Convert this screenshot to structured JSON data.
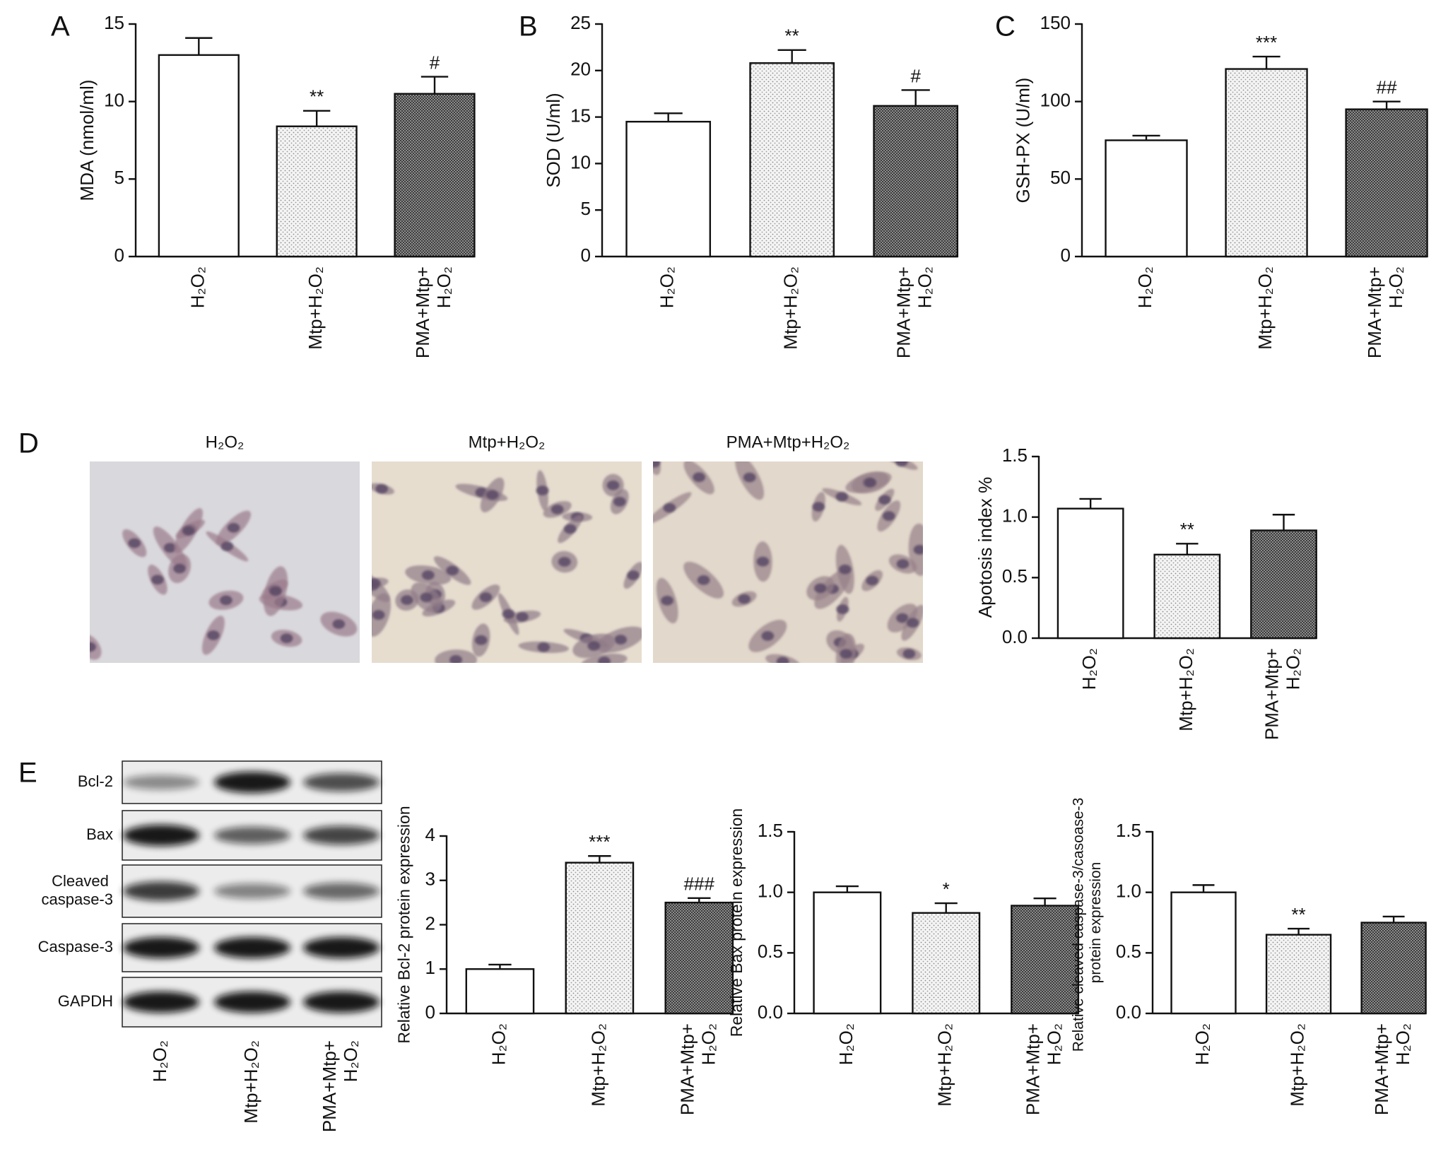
{
  "chart_data": [
    {
      "type": "bar",
      "panel": "A",
      "ylabel": "MDA (nmol/ml)",
      "categories": [
        "H₂O₂",
        "Mtp+H₂O₂",
        "PMA+Mtp+H₂O₂"
      ],
      "values": [
        13.0,
        8.4,
        10.5
      ],
      "errors": [
        1.1,
        1.0,
        1.1
      ],
      "annotations": [
        null,
        "**",
        "#"
      ],
      "ylim": [
        0,
        15
      ],
      "yticks": [
        0,
        5,
        10,
        15
      ],
      "patterns": [
        "none",
        "dots",
        "crosshatch"
      ]
    },
    {
      "type": "bar",
      "panel": "B",
      "ylabel": "SOD (U/ml)",
      "categories": [
        "H₂O₂",
        "Mtp+H₂O₂",
        "PMA+Mtp+H₂O₂"
      ],
      "values": [
        14.5,
        20.8,
        16.2
      ],
      "errors": [
        0.9,
        1.4,
        1.7
      ],
      "annotations": [
        null,
        "**",
        "#"
      ],
      "ylim": [
        0,
        25
      ],
      "yticks": [
        0,
        5,
        10,
        15,
        20,
        25
      ],
      "patterns": [
        "none",
        "dots",
        "crosshatch"
      ]
    },
    {
      "type": "bar",
      "panel": "C",
      "ylabel": "GSH-PX (U/ml)",
      "categories": [
        "H₂O₂",
        "Mtp+H₂O₂",
        "PMA+Mtp+H₂O₂"
      ],
      "values": [
        75,
        121,
        95
      ],
      "errors": [
        3,
        8,
        5
      ],
      "annotations": [
        null,
        "***",
        "##"
      ],
      "ylim": [
        0,
        150
      ],
      "yticks": [
        0,
        50,
        100,
        150
      ],
      "patterns": [
        "none",
        "dots",
        "crosshatch"
      ]
    },
    {
      "type": "bar",
      "panel": "D",
      "ylabel": "Apotosis index %",
      "categories": [
        "H₂O₂",
        "Mtp+H₂O₂",
        "PMA+Mtp+H₂O₂"
      ],
      "values": [
        1.07,
        0.69,
        0.89
      ],
      "errors": [
        0.08,
        0.09,
        0.13
      ],
      "annotations": [
        null,
        "**",
        null
      ],
      "ylim": [
        0,
        1.5
      ],
      "yticks": [
        {
          "value": 0,
          "label": "0.0"
        },
        0.5,
        {
          "value": 1,
          "label": "1.0"
        },
        1.5
      ],
      "patterns": [
        "none",
        "dots",
        "crosshatch"
      ]
    },
    {
      "type": "bar",
      "ylabel": "Relative Bcl-2 protein expression",
      "categories": [
        "H₂O₂",
        "Mtp+H₂O₂",
        "PMA+Mtp+H₂O₂"
      ],
      "values": [
        1.0,
        3.4,
        2.5
      ],
      "errors": [
        0.1,
        0.15,
        0.1
      ],
      "annotations": [
        null,
        "***",
        "###"
      ],
      "ylim": [
        0,
        4
      ],
      "yticks": [
        0,
        1,
        2,
        3,
        4
      ],
      "patterns": [
        "none",
        "dots",
        "crosshatch"
      ]
    },
    {
      "type": "bar",
      "ylabel": "Relative Bax protein expression",
      "categories": [
        "H₂O₂",
        "Mtp+H₂O₂",
        "PMA+Mtp+H₂O₂"
      ],
      "values": [
        1.0,
        0.83,
        0.89
      ],
      "errors": [
        0.05,
        0.08,
        0.06
      ],
      "annotations": [
        null,
        "*",
        null
      ],
      "ylim": [
        0,
        1.5
      ],
      "yticks": [
        {
          "value": 0,
          "label": "0.0"
        },
        0.5,
        {
          "value": 1,
          "label": "1.0"
        },
        1.5
      ],
      "patterns": [
        "none",
        "dots",
        "crosshatch"
      ]
    },
    {
      "type": "bar",
      "ylabel": "Relative cleaved caspase-3/casoase-3 protein expression",
      "categories": [
        "H₂O₂",
        "Mtp+H₂O₂",
        "PMA+Mtp+H₂O₂"
      ],
      "values": [
        1.0,
        0.65,
        0.75
      ],
      "errors": [
        0.06,
        0.05,
        0.05
      ],
      "annotations": [
        null,
        "**",
        null
      ],
      "ylim": [
        0,
        1.5
      ],
      "yticks": [
        {
          "value": 0,
          "label": "0.0"
        },
        0.5,
        {
          "value": 1,
          "label": "1.0"
        },
        1.5
      ],
      "patterns": [
        "none",
        "dots",
        "crosshatch"
      ]
    }
  ],
  "images": {
    "captions": [
      "H₂O₂",
      "Mtp+H₂O₂",
      "PMA+Mtp+H₂O₂"
    ]
  },
  "blot": {
    "panel": "E",
    "rows": [
      "Bcl-2",
      "Bax",
      "Cleaved caspase-3",
      "Caspase-3",
      "GAPDH"
    ],
    "lanes": [
      "H₂O₂",
      "Mtp+H₂O₂",
      "PMA+Mtp+H₂O₂"
    ]
  }
}
